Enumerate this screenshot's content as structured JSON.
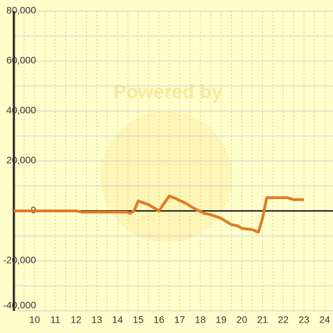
{
  "chart_data": {
    "type": "line",
    "watermark": "Powered by",
    "xlim": [
      9,
      24.4
    ],
    "xticks": [
      10,
      11,
      12,
      13,
      14,
      15,
      16,
      17,
      18,
      19,
      20,
      21,
      22,
      23,
      24
    ],
    "xminorticks": [
      9.5,
      10.5,
      11.5,
      12.5,
      13.5,
      14.5,
      15.5,
      16.5,
      17.5,
      18.5,
      19.5,
      20.5,
      21.5,
      22.5,
      23.5
    ],
    "ylim": [
      -40000,
      80000
    ],
    "yticks": [
      {
        "value": -40000,
        "label": "-40,000"
      },
      {
        "value": -20000,
        "label": "-20,000"
      },
      0,
      {
        "value": 20000,
        "label": "20,000"
      },
      {
        "value": 40000,
        "label": "40,000"
      },
      {
        "value": 60000,
        "label": "60,000"
      },
      {
        "value": 80000,
        "label": "80,000"
      }
    ],
    "yminorticks": [
      -30000,
      -10000,
      10000,
      30000,
      50000,
      70000
    ],
    "grid": true,
    "series": [
      {
        "color": "#e07b24",
        "x": [
          9,
          12,
          12.3,
          14.5,
          14.6,
          14.8,
          15,
          15.5,
          16,
          16.5,
          16.8,
          17.3,
          17.8,
          18.2,
          18.5,
          19,
          19.5,
          19.8,
          20,
          20.5,
          20.8,
          21,
          21.2,
          22.2,
          22.5,
          23
        ],
        "values": [
          0,
          0,
          -500,
          -500,
          -1000,
          0,
          4000,
          2500,
          0,
          6000,
          5000,
          3000,
          500,
          -1000,
          -1500,
          -3000,
          -5500,
          -6000,
          -7000,
          -7500,
          -8500,
          -3000,
          5300,
          5300,
          4500,
          4500
        ]
      }
    ]
  }
}
